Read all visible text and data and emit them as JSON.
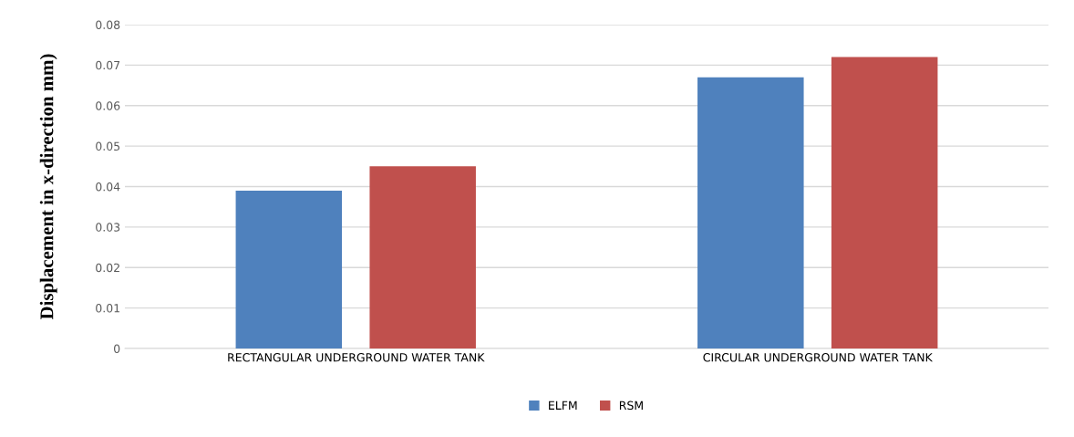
{
  "chart_data": {
    "type": "bar",
    "ylabel": "Displacement in x-direction mm)",
    "categories": [
      "RECTANGULAR UNDERGROUND WATER TANK",
      "CIRCULAR UNDERGROUND WATER TANK"
    ],
    "series": [
      {
        "name": "ELFM",
        "color": "#4f81bd",
        "values": [
          0.039,
          0.067
        ]
      },
      {
        "name": "RSM",
        "color": "#c0504d",
        "values": [
          0.045,
          0.072
        ]
      }
    ],
    "ylim": [
      0,
      0.08
    ],
    "yticks": [
      0,
      0.01,
      0.02,
      0.03,
      0.04,
      0.05,
      0.06,
      0.07,
      0.08
    ],
    "grid": "y",
    "legend": "bottom"
  }
}
